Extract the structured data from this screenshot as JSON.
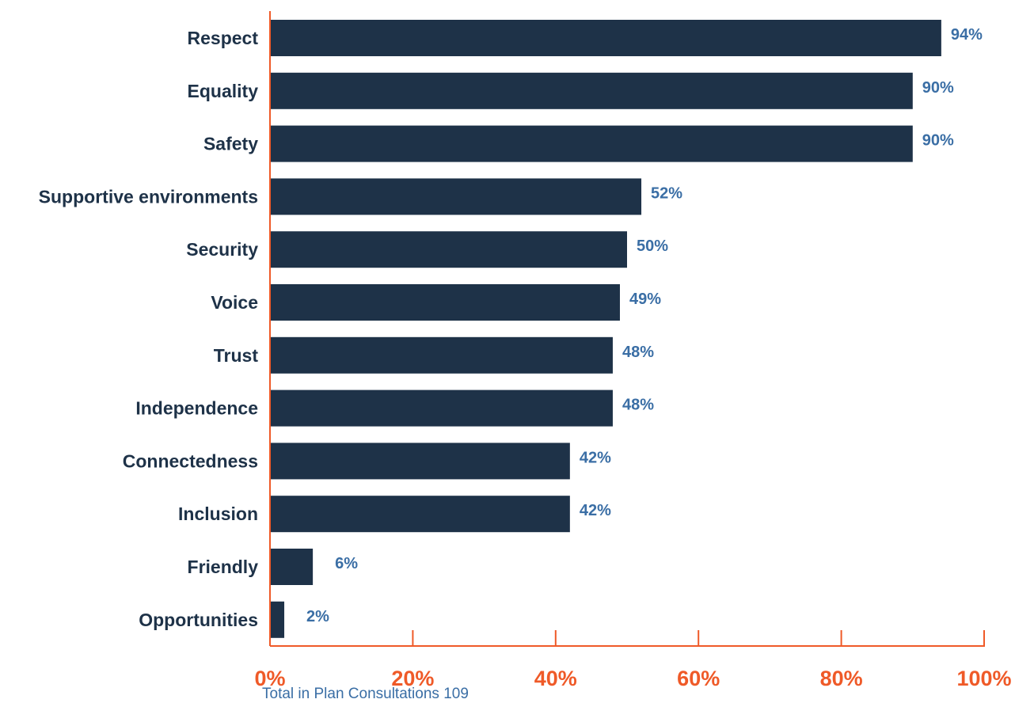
{
  "chart_data": {
    "type": "bar",
    "orientation": "horizontal",
    "categories": [
      "Respect",
      "Equality",
      "Safety",
      "Supportive environments",
      "Security",
      "Voice",
      "Trust",
      "Independence",
      "Connectedness",
      "Inclusion",
      "Friendly",
      "Opportunities"
    ],
    "values": [
      94,
      90,
      90,
      52,
      50,
      49,
      48,
      48,
      42,
      42,
      6,
      2
    ],
    "value_labels": [
      "94%",
      "90%",
      "90%",
      "52%",
      "50%",
      "49%",
      "48%",
      "48%",
      "42%",
      "42%",
      "6%",
      "2%"
    ],
    "title": "",
    "xlabel": "",
    "ylabel": "",
    "xlim": [
      0,
      100
    ],
    "x_ticks": [
      0,
      20,
      40,
      60,
      80,
      100
    ],
    "x_tick_labels": [
      "0%",
      "20%",
      "40%",
      "60%",
      "80%",
      "100%"
    ],
    "grid": false,
    "legend": "none",
    "bar_color": "#1e3248",
    "value_label_color": "#3a6ea5",
    "axis_color": "#ef5a28",
    "category_label_color": "#1e3248"
  },
  "footnote": "Total in Plan Consultations 109"
}
